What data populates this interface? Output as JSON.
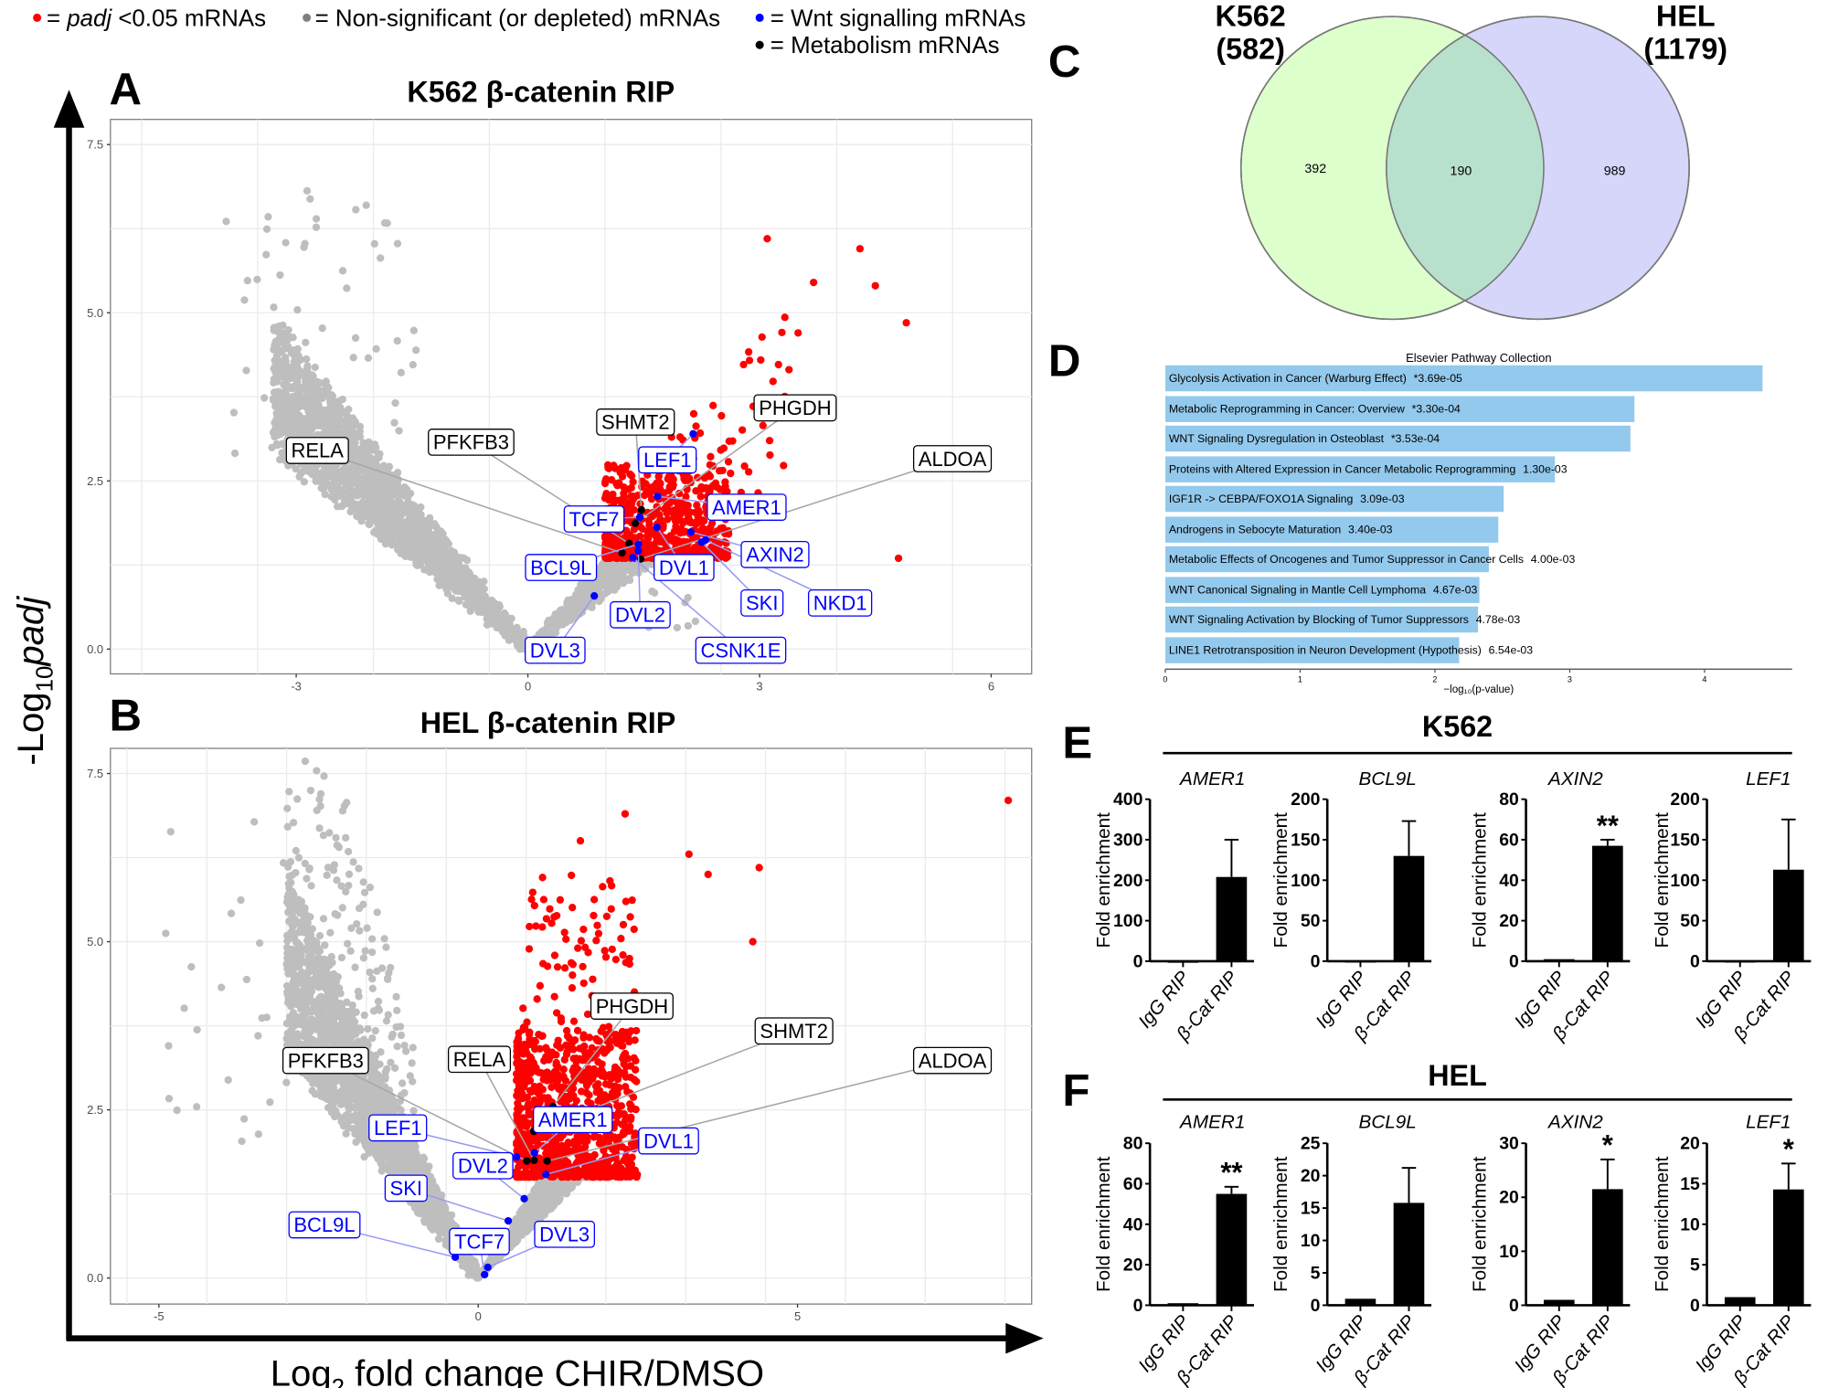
{
  "legend": [
    {
      "symbol_color": "#ff0000",
      "prefix": "= ",
      "italic": "padj",
      "suffix": " <0.05 mRNAs"
    },
    {
      "symbol_color": "#808080",
      "prefix": "= Non-significant (or depleted) mRNAs",
      "italic": "",
      "suffix": ""
    },
    {
      "symbol_color": "#0000ff",
      "prefix": "= Wnt signalling mRNAs",
      "italic": "",
      "suffix": ""
    },
    {
      "symbol_color": "#000000",
      "prefix": "= Metabolism mRNAs",
      "italic": "",
      "suffix": ""
    }
  ],
  "panel_letters": {
    "A": "A",
    "B": "B",
    "C": "C",
    "D": "D",
    "E": "E",
    "F": "F"
  },
  "shared_axes": {
    "ylabel_prefix": "-Log",
    "ylabel_sub": "10",
    "ylabel_italic": "padj",
    "xlabel_prefix": "Log",
    "xlabel_sub": "2",
    "xlabel_suffix": " fold change CHIR/DMSO"
  },
  "colors": {
    "significant": "#ff0000",
    "nonsignificant": "#bebebe",
    "wnt": "#0000ff",
    "metabolism": "#000000",
    "pathway_bar": "#93c9ec",
    "venn_k562": "#dcffcc",
    "venn_hel": "#d6d6fa",
    "venn_overlap": "#b8e1cd"
  },
  "chart_data": [
    {
      "type": "scatter",
      "panel": "A",
      "title": "K562 β-catenin RIP",
      "xlim": [
        -5.4,
        6.5
      ],
      "ylim": [
        -0.4,
        7.9
      ],
      "x_ticks": [
        "-3",
        "0",
        "3",
        "6"
      ],
      "x_tick_values": [
        -3,
        0,
        3,
        6
      ],
      "y_ticks": [
        "0.0",
        "2.5",
        "5.0",
        "7.5"
      ],
      "y_tick_values": [
        0,
        2.5,
        5,
        7.5
      ],
      "grid": true,
      "labeled_genes": [
        {
          "name": "RELA",
          "x": 1.22,
          "y": 1.43,
          "group": "metabolism"
        },
        {
          "name": "PFKFB3",
          "x": 1.31,
          "y": 1.57,
          "group": "metabolism"
        },
        {
          "name": "SHMT2",
          "x": 1.47,
          "y": 2.07,
          "group": "metabolism"
        },
        {
          "name": "PHGDH",
          "x": 1.39,
          "y": 1.87,
          "group": "metabolism"
        },
        {
          "name": "ALDOA",
          "x": 1.46,
          "y": 1.34,
          "group": "metabolism"
        },
        {
          "name": "LEF1",
          "x": 2.14,
          "y": 3.2,
          "group": "wnt"
        },
        {
          "name": "TCF7",
          "x": 1.45,
          "y": 1.96,
          "group": "wnt"
        },
        {
          "name": "AMER1",
          "x": 1.68,
          "y": 2.27,
          "group": "wnt"
        },
        {
          "name": "AXIN2",
          "x": 2.11,
          "y": 1.74,
          "group": "wnt"
        },
        {
          "name": "BCL9L",
          "x": 1.43,
          "y": 1.56,
          "group": "wnt"
        },
        {
          "name": "DVL1",
          "x": 1.67,
          "y": 1.81,
          "group": "wnt"
        },
        {
          "name": "SKI",
          "x": 2.25,
          "y": 1.59,
          "group": "wnt"
        },
        {
          "name": "NKD1",
          "x": 2.3,
          "y": 1.62,
          "group": "wnt"
        },
        {
          "name": "DVL2",
          "x": 1.43,
          "y": 1.46,
          "group": "wnt"
        },
        {
          "name": "DVL3",
          "x": 0.86,
          "y": 0.79,
          "group": "wnt"
        },
        {
          "name": "CSNK1E",
          "x": 1.36,
          "y": 1.36,
          "group": "wnt"
        }
      ]
    },
    {
      "type": "scatter",
      "panel": "B",
      "title": "HEL β-catenin RIP",
      "xlim": [
        -5.7,
        8.7
      ],
      "ylim": [
        -0.4,
        7.9
      ],
      "x_ticks": [
        "-5",
        "0",
        "5"
      ],
      "x_tick_values": [
        -5,
        0,
        5
      ],
      "y_ticks": [
        "0.0",
        "2.5",
        "5.0",
        "7.5"
      ],
      "y_tick_values": [
        0,
        2.5,
        5,
        7.5
      ],
      "grid": true,
      "labeled_genes": [
        {
          "name": "PFKFB3",
          "x": 0.76,
          "y": 1.74,
          "group": "metabolism"
        },
        {
          "name": "RELA",
          "x": 0.875,
          "y": 1.75,
          "group": "metabolism"
        },
        {
          "name": "PHGDH",
          "x": 1.17,
          "y": 2.55,
          "group": "metabolism"
        },
        {
          "name": "SHMT2",
          "x": 0.87,
          "y": 2.18,
          "group": "metabolism"
        },
        {
          "name": "ALDOA",
          "x": 1.08,
          "y": 1.74,
          "group": "metabolism"
        },
        {
          "name": "LEF1",
          "x": 0.6,
          "y": 1.8,
          "group": "wnt"
        },
        {
          "name": "AMER1",
          "x": 0.88,
          "y": 1.86,
          "group": "wnt"
        },
        {
          "name": "DVL1",
          "x": 1.06,
          "y": 1.54,
          "group": "wnt"
        },
        {
          "name": "DVL2",
          "x": 0.72,
          "y": 1.18,
          "group": "wnt"
        },
        {
          "name": "SKI",
          "x": 0.47,
          "y": 0.85,
          "group": "wnt"
        },
        {
          "name": "BCL9L",
          "x": -0.36,
          "y": 0.31,
          "group": "wnt"
        },
        {
          "name": "TCF7",
          "x": 0.1,
          "y": 0.05,
          "group": "wnt"
        },
        {
          "name": "DVL3",
          "x": 0.15,
          "y": 0.16,
          "group": "wnt"
        }
      ]
    },
    {
      "type": "venn",
      "panel": "C",
      "sets": [
        {
          "name": "K562",
          "count_label": "(582)"
        },
        {
          "name": "HEL",
          "count_label": "(1179)"
        }
      ],
      "regions": {
        "k562_only": "392",
        "both": "190",
        "hel_only": "989"
      }
    },
    {
      "type": "bar",
      "orientation": "horizontal",
      "panel": "D",
      "title": "Elsevier Pathway Collection",
      "xlabel": "−log₁₀(p-value)",
      "x_ticks": [
        "0",
        "1",
        "2",
        "3",
        "4"
      ],
      "xlim": [
        0,
        4.6
      ],
      "categories": [
        "Glycolysis Activation in Cancer (Warburg Effect)",
        "Metabolic Reprogramming in Cancer: Overview",
        "WNT Signaling Dysregulation in Osteoblast",
        "Proteins with Altered Expression in Cancer Metabolic Reprogramming",
        "IGF1R -> CEBPA/FOXO1A Signaling",
        "Androgens in Sebocyte Maturation",
        "Metabolic Effects of Oncogenes and Tumor Suppressor in Cancer Cells",
        "WNT Canonical Signaling in Mantle Cell Lymphoma",
        "WNT Signaling Activation by Blocking of Tumor Suppressors",
        "LINE1 Retrotransposition in Neuron Development (Hypothesis)"
      ],
      "pvalue_labels": [
        "*3.69e-05",
        "*3.30e-04",
        "*3.53e-04",
        "1.30e-03",
        "3.09e-03",
        "3.40e-03",
        "4.00e-03",
        "4.67e-03",
        "4.78e-03",
        "6.54e-03"
      ],
      "values": [
        4.43,
        3.48,
        3.45,
        2.89,
        2.51,
        2.47,
        2.4,
        2.33,
        2.32,
        2.18
      ]
    },
    {
      "type": "bar",
      "panel": "E",
      "group_title": "K562",
      "charts": [
        {
          "gene": "AMER1",
          "ylabel": "Fold enrichment",
          "categories": [
            "IgG RIP",
            "β-Cat RIP"
          ],
          "values": [
            0.5,
            208
          ],
          "errors": [
            0,
            92
          ],
          "y_ticks": [
            "0",
            "100",
            "200",
            "300",
            "400"
          ],
          "ymax": 400,
          "significance": ""
        },
        {
          "gene": "BCL9L",
          "ylabel": "Fold enrichment",
          "categories": [
            "IgG RIP",
            "β-Cat RIP"
          ],
          "values": [
            0.5,
            130
          ],
          "errors": [
            0,
            43
          ],
          "y_ticks": [
            "0",
            "50",
            "100",
            "150",
            "200"
          ],
          "ymax": 200,
          "significance": ""
        },
        {
          "gene": "AXIN2",
          "ylabel": "Fold enrichment",
          "categories": [
            "IgG RIP",
            "β-Cat RIP"
          ],
          "values": [
            1,
            57
          ],
          "errors": [
            0,
            3
          ],
          "y_ticks": [
            "0",
            "20",
            "40",
            "60",
            "80"
          ],
          "ymax": 80,
          "significance": "**"
        },
        {
          "gene": "LEF1",
          "ylabel": "Fold enrichment",
          "categories": [
            "IgG RIP",
            "β-Cat RIP"
          ],
          "values": [
            0.5,
            113
          ],
          "errors": [
            0,
            62
          ],
          "y_ticks": [
            "0",
            "50",
            "100",
            "150",
            "200"
          ],
          "ymax": 200,
          "significance": ""
        }
      ]
    },
    {
      "type": "bar",
      "panel": "F",
      "group_title": "HEL",
      "charts": [
        {
          "gene": "AMER1",
          "ylabel": "Fold enrichment",
          "categories": [
            "IgG RIP",
            "β-Cat RIP"
          ],
          "values": [
            1,
            55
          ],
          "errors": [
            0,
            3.5
          ],
          "y_ticks": [
            "0",
            "20",
            "40",
            "60",
            "80"
          ],
          "ymax": 80,
          "significance": "**"
        },
        {
          "gene": "BCL9L",
          "ylabel": "Fold enrichment",
          "categories": [
            "IgG RIP",
            "β-Cat RIP"
          ],
          "values": [
            1,
            15.8
          ],
          "errors": [
            0,
            5.4
          ],
          "y_ticks": [
            "0",
            "5",
            "10",
            "15",
            "20",
            "25"
          ],
          "ymax": 25,
          "significance": ""
        },
        {
          "gene": "AXIN2",
          "ylabel": "Fold enrichment",
          "categories": [
            "IgG RIP",
            "β-Cat RIP"
          ],
          "values": [
            1,
            21.5
          ],
          "errors": [
            0,
            5.5
          ],
          "y_ticks": [
            "0",
            "10",
            "20",
            "30"
          ],
          "ymax": 30,
          "significance": "*"
        },
        {
          "gene": "LEF1",
          "ylabel": "Fold enrichment",
          "categories": [
            "IgG RIP",
            "β-Cat RIP"
          ],
          "values": [
            1,
            14.3
          ],
          "errors": [
            0,
            3.2
          ],
          "y_ticks": [
            "0",
            "5",
            "10",
            "15",
            "20"
          ],
          "ymax": 20,
          "significance": "*"
        }
      ]
    }
  ]
}
